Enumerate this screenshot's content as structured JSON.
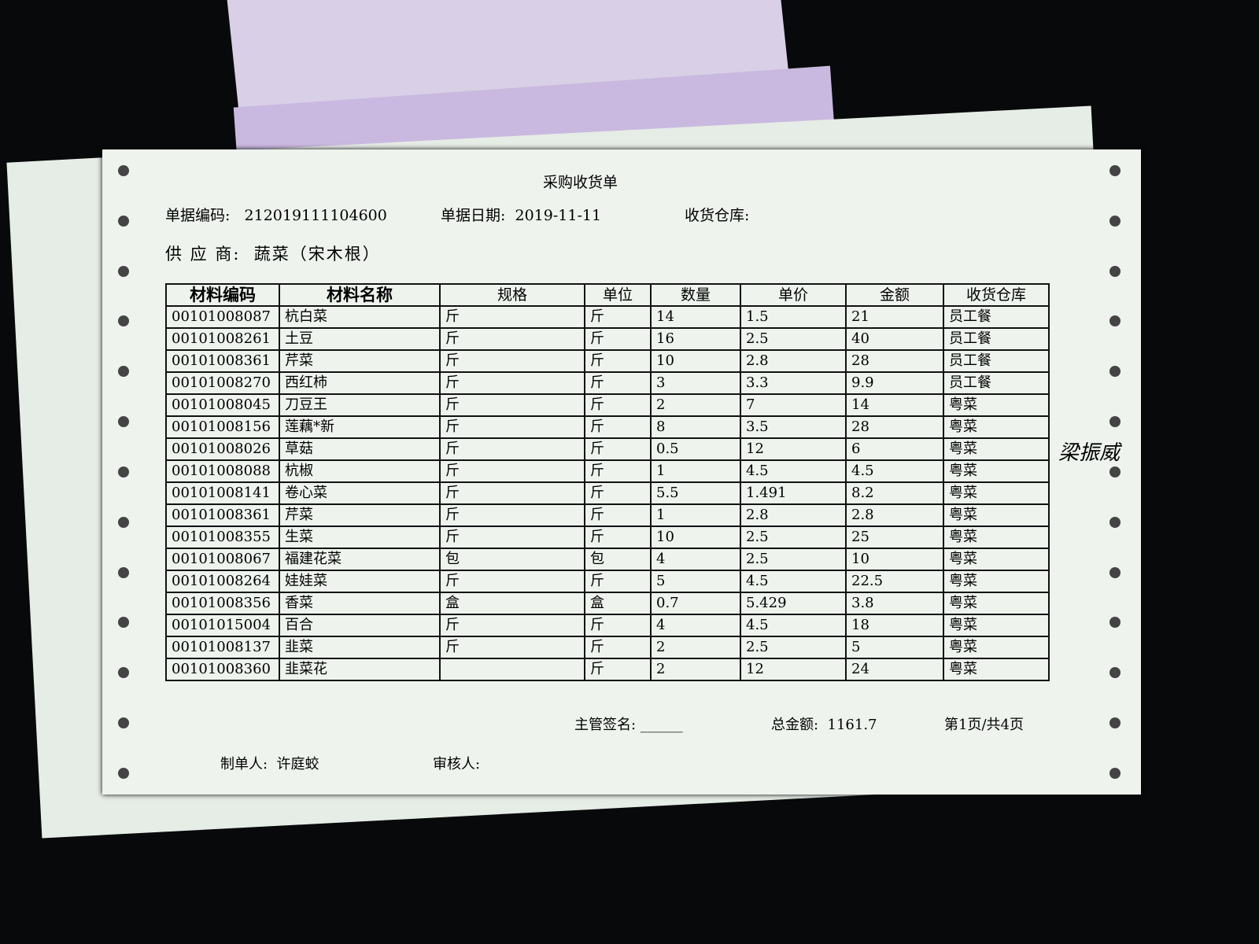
{
  "document": {
    "title": "采购收货单",
    "doc_no_label": "单据编码:",
    "doc_no": "212019111104600",
    "doc_date_label": "单据日期:",
    "doc_date": "2019-11-11",
    "warehouse_label": "收货仓库:",
    "supplier_label": "供 应 商:",
    "supplier": "蔬菜（宋木根）",
    "columns": [
      "材料编码",
      "材料名称",
      "规格",
      "单位",
      "数量",
      "单价",
      "金额",
      "收货仓库"
    ],
    "rows": [
      [
        "00101008087",
        "杭白菜",
        "斤",
        "斤",
        "14",
        "1.5",
        "21",
        "员工餐"
      ],
      [
        "00101008261",
        "土豆",
        "斤",
        "斤",
        "16",
        "2.5",
        "40",
        "员工餐"
      ],
      [
        "00101008361",
        "芹菜",
        "斤",
        "斤",
        "10",
        "2.8",
        "28",
        "员工餐"
      ],
      [
        "00101008270",
        "西红柿",
        "斤",
        "斤",
        "3",
        "3.3",
        "9.9",
        "员工餐"
      ],
      [
        "00101008045",
        "刀豆王",
        "斤",
        "斤",
        "2",
        "7",
        "14",
        "粤菜"
      ],
      [
        "00101008156",
        "莲藕*新",
        "斤",
        "斤",
        "8",
        "3.5",
        "28",
        "粤菜"
      ],
      [
        "00101008026",
        "草菇",
        "斤",
        "斤",
        "0.5",
        "12",
        "6",
        "粤菜"
      ],
      [
        "00101008088",
        "杭椒",
        "斤",
        "斤",
        "1",
        "4.5",
        "4.5",
        "粤菜"
      ],
      [
        "00101008141",
        "卷心菜",
        "斤",
        "斤",
        "5.5",
        "1.491",
        "8.2",
        "粤菜"
      ],
      [
        "00101008361",
        "芹菜",
        "斤",
        "斤",
        "1",
        "2.8",
        "2.8",
        "粤菜"
      ],
      [
        "00101008355",
        "生菜",
        "斤",
        "斤",
        "10",
        "2.5",
        "25",
        "粤菜"
      ],
      [
        "00101008067",
        "福建花菜",
        "包",
        "包",
        "4",
        "2.5",
        "10",
        "粤菜"
      ],
      [
        "00101008264",
        "娃娃菜",
        "斤",
        "斤",
        "5",
        "4.5",
        "22.5",
        "粤菜"
      ],
      [
        "00101008356",
        "香菜",
        "盒",
        "盒",
        "0.7",
        "5.429",
        "3.8",
        "粤菜"
      ],
      [
        "00101015004",
        "百合",
        "斤",
        "斤",
        "4",
        "4.5",
        "18",
        "粤菜"
      ],
      [
        "00101008137",
        "韭菜",
        "斤",
        "斤",
        "2",
        "2.5",
        "5",
        "粤菜"
      ],
      [
        "00101008360",
        "韭菜花",
        "",
        "斤",
        "2",
        "12",
        "24",
        "粤菜"
      ]
    ],
    "signature": "梁振威",
    "supervisor_label": "主管签名: ______",
    "total_label": "总金额:",
    "total": "1161.7",
    "page_info": "第1页/共4页",
    "maker_label": "制单人:",
    "maker": "许庭蛟",
    "reviewer_label": "审核人:"
  }
}
